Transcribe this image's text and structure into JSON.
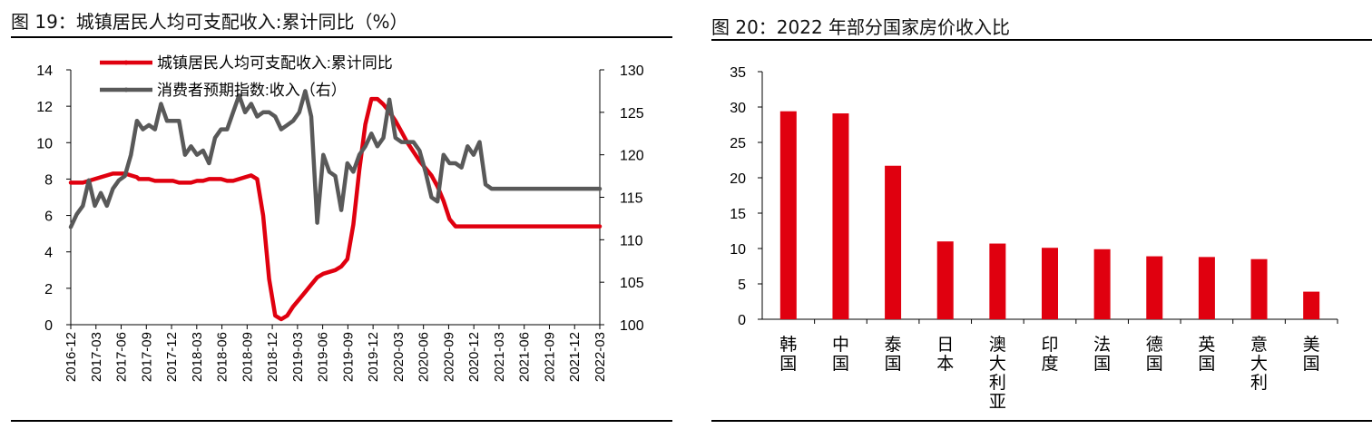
{
  "left": {
    "title": "图 19：城镇居民人均可支配收入:累计同比（%）",
    "chart_data": {
      "type": "line",
      "title": "图 19：城镇居民人均可支配收入:累计同比（%）",
      "legend_position": "top-left",
      "grid": false,
      "x_tick_labels": [
        "2016-12",
        "2017-03",
        "2017-06",
        "2017-09",
        "2017-12",
        "2018-03",
        "2018-06",
        "2018-09",
        "2018-12",
        "2019-03",
        "2019-06",
        "2019-09",
        "2019-12",
        "2020-03",
        "2020-06",
        "2020-09",
        "2020-12",
        "2021-03",
        "2021-06",
        "2021-09",
        "2021-12",
        "2022-03"
      ],
      "y_left": {
        "ylim": [
          0,
          14
        ],
        "ticks": [
          "0",
          "2",
          "4",
          "6",
          "8",
          "10",
          "12",
          "14"
        ]
      },
      "y_right": {
        "ylim": [
          100,
          130
        ],
        "ticks": [
          "100",
          "105",
          "110",
          "115",
          "120",
          "125",
          "130"
        ]
      },
      "series": [
        {
          "name": "城镇居民人均可支配收入:累计同比",
          "axis": "left",
          "color": "#e0000f",
          "x": [
            0,
            3,
            6,
            9,
            12,
            15,
            18,
            21,
            24,
            27,
            30,
            33,
            34,
            35,
            36,
            37,
            39,
            42,
            45,
            48,
            51,
            54,
            57,
            60,
            63,
            66,
            69,
            72,
            75,
            78,
            81,
            84,
            87,
            90,
            93,
            96,
            99,
            102,
            105,
            108,
            111,
            114,
            117,
            120,
            123,
            126,
            129,
            132,
            135,
            138,
            141,
            144,
            147,
            150,
            153,
            156,
            159,
            162,
            165,
            168,
            171,
            174,
            177,
            180,
            183,
            186,
            189,
            192,
            195,
            198,
            201,
            204,
            207,
            210,
            213,
            216,
            219,
            222,
            225,
            228,
            231,
            234,
            237,
            240,
            243,
            246,
            249,
            252,
            255,
            258,
            261,
            264
          ],
          "y": [
            7.8,
            7.8,
            7.8,
            7.9,
            8.0,
            8.1,
            8.2,
            8.3,
            8.3,
            8.3,
            8.2,
            8.1,
            8.0,
            8.0,
            8.0,
            8.0,
            8.0,
            7.9,
            7.9,
            7.9,
            7.9,
            7.8,
            7.8,
            7.8,
            7.9,
            7.9,
            8.0,
            8.0,
            8.0,
            7.9,
            7.9,
            8.0,
            8.1,
            8.2,
            8.0,
            6.0,
            2.5,
            0.5,
            0.3,
            0.5,
            1.0,
            1.4,
            1.8,
            2.2,
            2.6,
            2.8,
            2.9,
            3.0,
            3.2,
            3.6,
            5.5,
            8.5,
            11.0,
            12.4,
            12.4,
            12.1,
            11.7,
            11.2,
            10.6,
            10.0,
            9.5,
            9.0,
            8.6,
            8.2,
            7.6,
            6.8,
            5.8,
            5.4,
            5.4,
            5.4,
            5.4,
            5.4,
            5.4,
            5.4,
            5.4,
            5.4,
            5.4,
            5.4,
            5.4,
            5.4,
            5.4,
            5.4,
            5.4,
            5.4,
            5.4,
            5.4,
            5.4,
            5.4,
            5.4,
            5.4,
            5.4,
            5.4
          ]
        },
        {
          "name": "消费者预期指数:收入（右）",
          "axis": "right",
          "color": "#595959",
          "x": [
            0,
            3,
            6,
            9,
            12,
            15,
            18,
            21,
            24,
            27,
            30,
            33,
            36,
            39,
            42,
            45,
            48,
            51,
            54,
            57,
            60,
            63,
            66,
            69,
            72,
            75,
            78,
            81,
            84,
            87,
            90,
            93,
            96,
            99,
            102,
            105,
            108,
            111,
            114,
            117,
            120,
            123,
            126,
            129,
            132,
            135,
            138,
            141,
            144,
            147,
            150,
            153,
            156,
            159,
            162,
            165,
            168,
            171,
            174,
            177,
            180,
            183,
            186,
            189,
            192,
            195,
            198,
            201,
            204,
            207,
            210,
            213,
            216,
            219,
            222,
            225,
            228,
            231,
            234,
            237,
            240,
            243,
            246,
            249,
            252,
            255,
            258,
            261,
            264
          ],
          "y": [
            111.5,
            113,
            114,
            117,
            114,
            115.5,
            114,
            116,
            117,
            117.5,
            120,
            124,
            123,
            123.5,
            123,
            126,
            124,
            124,
            124,
            120,
            121,
            120,
            120.5,
            119,
            122,
            123,
            123,
            125,
            127,
            125,
            126,
            124.5,
            125,
            125,
            124.5,
            123,
            123.5,
            124,
            125,
            127.5,
            124.5,
            112,
            120,
            118,
            117.5,
            113.5,
            119,
            118,
            120,
            121,
            122.5,
            121,
            122,
            126.5,
            122,
            121.5,
            121.5,
            121.5,
            120.5,
            118,
            115,
            114.5,
            120,
            119,
            119,
            118.5,
            121,
            120,
            121.5,
            116.5,
            116,
            116,
            116,
            116,
            116,
            116,
            116,
            116,
            116,
            116,
            116,
            116,
            116,
            116,
            116,
            116,
            116,
            116,
            116
          ]
        }
      ]
    }
  },
  "right": {
    "title": "图 20：2022 年部分国家房价收入比",
    "chart_data": {
      "type": "bar",
      "title": "图 20：2022 年部分国家房价收入比",
      "categories": [
        "韩国",
        "中国",
        "泰国",
        "日本",
        "澳大利亚",
        "印度",
        "法国",
        "德国",
        "英国",
        "意大利",
        "美国"
      ],
      "values": [
        29.4,
        29.1,
        21.7,
        11.0,
        10.7,
        10.1,
        9.9,
        8.9,
        8.8,
        8.5,
        3.9
      ],
      "ylim": [
        0,
        35
      ],
      "y_ticks": [
        "0",
        "5",
        "10",
        "15",
        "20",
        "25",
        "30",
        "35"
      ],
      "color": "#e0000f",
      "grid": false
    }
  }
}
